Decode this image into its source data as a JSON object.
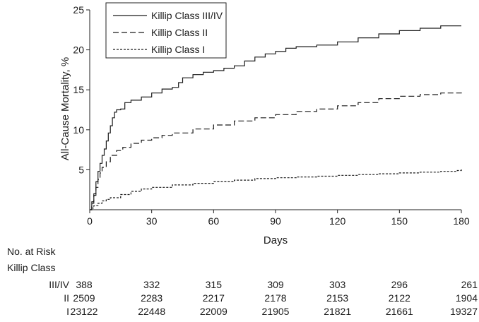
{
  "chart_data": {
    "type": "line",
    "xlabel": "Days",
    "ylabel": "All-Cause Mortality, %",
    "xlim": [
      0,
      180
    ],
    "ylim": [
      0,
      25
    ],
    "x_ticks": [
      0,
      30,
      60,
      90,
      120,
      150,
      180
    ],
    "y_ticks": [
      5,
      10,
      15,
      20,
      25
    ],
    "grid": false,
    "legend": {
      "placement": "top-left"
    },
    "series": [
      {
        "name": "Killip Class III/IV",
        "line_style": "solid",
        "points": [
          [
            0,
            0
          ],
          [
            1,
            1
          ],
          [
            2,
            2
          ],
          [
            3,
            3.5
          ],
          [
            4,
            4.8
          ],
          [
            5,
            5.8
          ],
          [
            6,
            6.8
          ],
          [
            7,
            7.6
          ],
          [
            8,
            8.6
          ],
          [
            9,
            9.6
          ],
          [
            10,
            10.5
          ],
          [
            11,
            11.5
          ],
          [
            12,
            12.2
          ],
          [
            13,
            12.5
          ],
          [
            15,
            12.6
          ],
          [
            17,
            13.4
          ],
          [
            20,
            13.7
          ],
          [
            25,
            14.1
          ],
          [
            30,
            14.6
          ],
          [
            35,
            15.1
          ],
          [
            40,
            15.3
          ],
          [
            43,
            15.9
          ],
          [
            45,
            16.5
          ],
          [
            50,
            16.9
          ],
          [
            55,
            17.2
          ],
          [
            60,
            17.4
          ],
          [
            65,
            17.7
          ],
          [
            70,
            18.0
          ],
          [
            75,
            18.6
          ],
          [
            80,
            19.1
          ],
          [
            85,
            19.5
          ],
          [
            90,
            19.8
          ],
          [
            95,
            20.2
          ],
          [
            100,
            20.4
          ],
          [
            110,
            20.6
          ],
          [
            120,
            21.0
          ],
          [
            130,
            21.5
          ],
          [
            140,
            22.0
          ],
          [
            150,
            22.4
          ],
          [
            160,
            22.7
          ],
          [
            170,
            23.0
          ],
          [
            180,
            23.0
          ]
        ]
      },
      {
        "name": "Killip Class II",
        "line_style": "dashed",
        "points": [
          [
            0,
            0
          ],
          [
            1,
            0.8
          ],
          [
            2,
            1.8
          ],
          [
            3,
            2.8
          ],
          [
            4,
            3.8
          ],
          [
            5,
            4.6
          ],
          [
            6,
            5.3
          ],
          [
            8,
            6.0
          ],
          [
            10,
            6.8
          ],
          [
            13,
            7.4
          ],
          [
            16,
            7.8
          ],
          [
            20,
            8.3
          ],
          [
            25,
            8.7
          ],
          [
            30,
            9.0
          ],
          [
            35,
            9.3
          ],
          [
            40,
            9.6
          ],
          [
            50,
            10.1
          ],
          [
            60,
            10.6
          ],
          [
            70,
            11.1
          ],
          [
            80,
            11.5
          ],
          [
            90,
            11.9
          ],
          [
            100,
            12.3
          ],
          [
            110,
            12.6
          ],
          [
            120,
            13.0
          ],
          [
            130,
            13.4
          ],
          [
            140,
            13.9
          ],
          [
            150,
            14.2
          ],
          [
            160,
            14.4
          ],
          [
            170,
            14.6
          ],
          [
            180,
            14.7
          ]
        ]
      },
      {
        "name": "Killip Class I",
        "line_style": "dotted",
        "points": [
          [
            0,
            0
          ],
          [
            1,
            0.2
          ],
          [
            2,
            0.5
          ],
          [
            4,
            0.8
          ],
          [
            6,
            1.1
          ],
          [
            8,
            1.3
          ],
          [
            10,
            1.5
          ],
          [
            15,
            1.9
          ],
          [
            20,
            2.3
          ],
          [
            25,
            2.6
          ],
          [
            30,
            2.8
          ],
          [
            40,
            3.1
          ],
          [
            50,
            3.3
          ],
          [
            60,
            3.5
          ],
          [
            70,
            3.7
          ],
          [
            80,
            3.9
          ],
          [
            90,
            4.0
          ],
          [
            100,
            4.1
          ],
          [
            110,
            4.2
          ],
          [
            120,
            4.3
          ],
          [
            130,
            4.4
          ],
          [
            140,
            4.5
          ],
          [
            150,
            4.6
          ],
          [
            160,
            4.7
          ],
          [
            170,
            4.8
          ],
          [
            178,
            4.9
          ],
          [
            180,
            5.1
          ]
        ]
      }
    ]
  },
  "risk_table": {
    "title": "No. at Risk",
    "group_label": "Killip Class",
    "rows": [
      {
        "label": "III/IV",
        "values": [
          "388",
          "332",
          "315",
          "309",
          "303",
          "296",
          "261"
        ]
      },
      {
        "label": "II",
        "values": [
          "2509",
          "2283",
          "2217",
          "2178",
          "2153",
          "2122",
          "1904"
        ]
      },
      {
        "label": "I",
        "values": [
          "23122",
          "22448",
          "22009",
          "21905",
          "21821",
          "21661",
          "19327"
        ]
      }
    ]
  }
}
